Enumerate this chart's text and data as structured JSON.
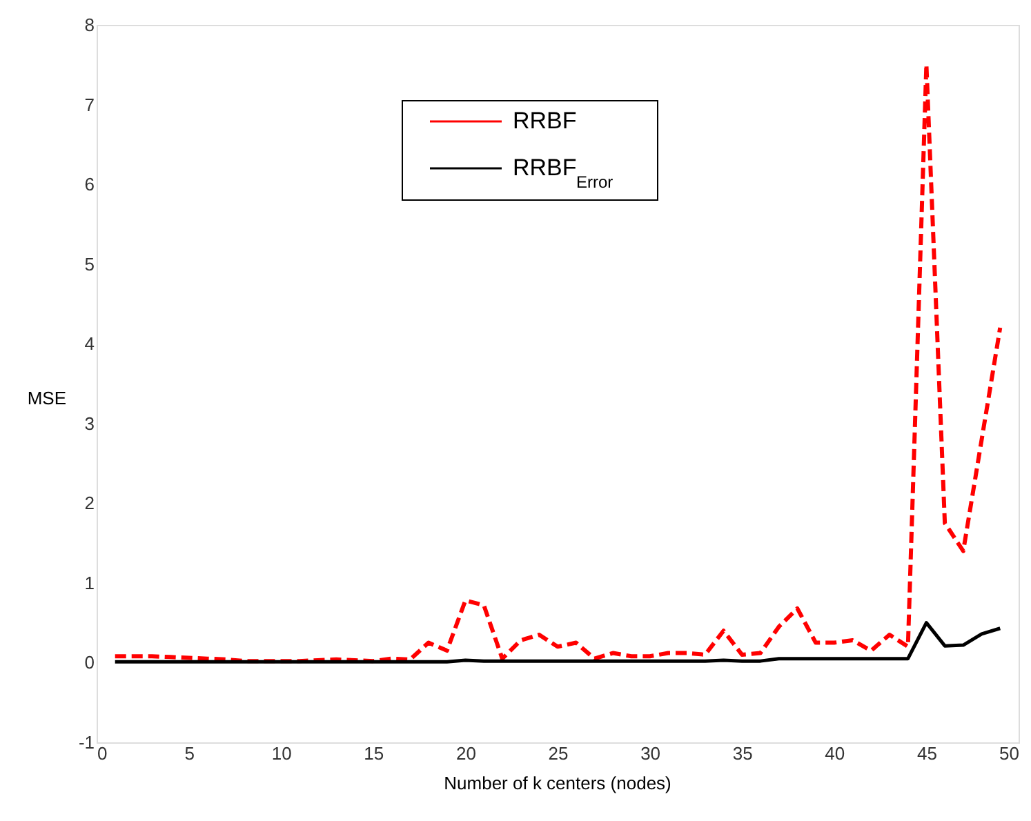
{
  "chart_data": {
    "type": "line",
    "xlabel": "Number of k centers (nodes)",
    "ylabel": "MSE",
    "x": [
      1,
      2,
      3,
      4,
      5,
      6,
      7,
      8,
      9,
      10,
      11,
      12,
      13,
      14,
      15,
      16,
      17,
      18,
      19,
      20,
      21,
      22,
      23,
      24,
      25,
      26,
      27,
      28,
      29,
      30,
      31,
      32,
      33,
      34,
      35,
      36,
      37,
      38,
      39,
      40,
      41,
      42,
      43,
      44,
      45,
      46,
      47,
      48,
      49
    ],
    "series": [
      {
        "name": "RRBF",
        "color": "#ff0000",
        "line_style": "dashed",
        "values": [
          0.08,
          0.08,
          0.08,
          0.07,
          0.06,
          0.05,
          0.04,
          0.02,
          0.02,
          0.02,
          0.02,
          0.03,
          0.04,
          0.03,
          0.02,
          0.05,
          0.04,
          0.25,
          0.15,
          0.78,
          0.72,
          0.05,
          0.28,
          0.35,
          0.2,
          0.25,
          0.05,
          0.12,
          0.08,
          0.08,
          0.12,
          0.12,
          0.1,
          0.4,
          0.1,
          0.12,
          0.45,
          0.68,
          0.25,
          0.25,
          0.28,
          0.15,
          0.35,
          0.2,
          7.5,
          1.75,
          1.4,
          2.8,
          4.2
        ]
      },
      {
        "name": "RRBF$_{Error}$",
        "color": "#000000",
        "line_style": "solid",
        "values": [
          0.01,
          0.01,
          0.01,
          0.01,
          0.01,
          0.01,
          0.01,
          0.01,
          0.01,
          0.01,
          0.01,
          0.01,
          0.01,
          0.01,
          0.01,
          0.01,
          0.01,
          0.01,
          0.01,
          0.03,
          0.02,
          0.02,
          0.02,
          0.02,
          0.02,
          0.02,
          0.02,
          0.02,
          0.02,
          0.02,
          0.02,
          0.02,
          0.02,
          0.03,
          0.02,
          0.02,
          0.05,
          0.05,
          0.05,
          0.05,
          0.05,
          0.05,
          0.05,
          0.05,
          0.5,
          0.21,
          0.22,
          0.36,
          0.43
        ]
      }
    ],
    "xlim": [
      0,
      50
    ],
    "xticks": [
      0,
      5,
      10,
      15,
      20,
      25,
      30,
      35,
      40,
      45,
      50
    ],
    "ylim": [
      -1,
      8
    ],
    "yticks": [
      -1,
      0,
      1,
      2,
      3,
      4,
      5,
      6,
      7,
      8
    ],
    "grid": false,
    "legend": "top",
    "marker": "none"
  }
}
